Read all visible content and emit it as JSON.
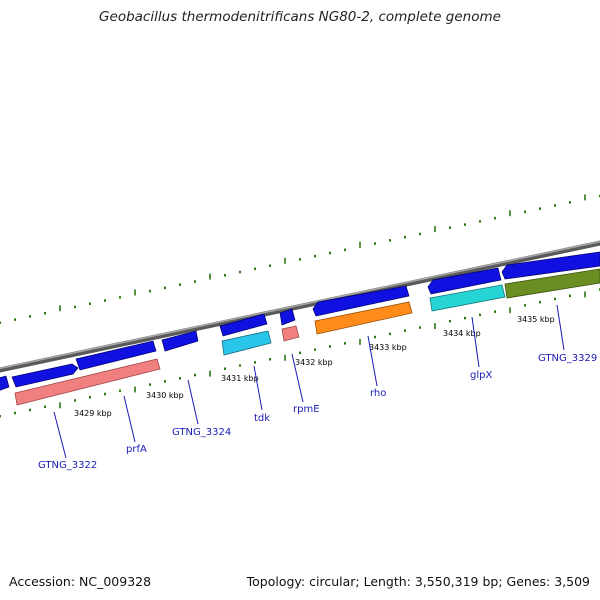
{
  "title": "Geobacillus thermodenitrificans NG80-2, complete genome",
  "footer": {
    "accession": "Accession: NC_009328",
    "summary": "Topology: circular; Length: 3,550,319 bp; Genes: 3,509"
  },
  "colors": {
    "backbone": "#8c8c8c",
    "tick": "#2d7a12",
    "cds_forward": "#1010e0",
    "gene_label": "#1a1ab4",
    "prfA": "#f08080",
    "tdk": "#29c6ea",
    "rpmE": "#f08080",
    "rho": "#ff8c1a",
    "glpX": "#27d4d4",
    "GTNG_3329": "#6b8e23"
  },
  "scale_labels": [
    "3429 kbp",
    "3430 kbp",
    "3431 kbp",
    "3432 kbp",
    "3433 kbp",
    "3434 kbp",
    "3435 kbp"
  ],
  "genes": [
    {
      "name": "GTNG_3322"
    },
    {
      "name": "prfA"
    },
    {
      "name": "GTNG_3324"
    },
    {
      "name": "tdk"
    },
    {
      "name": "rpmE"
    },
    {
      "name": "rho"
    },
    {
      "name": "glpX"
    },
    {
      "name": "GTNG_3329"
    }
  ]
}
